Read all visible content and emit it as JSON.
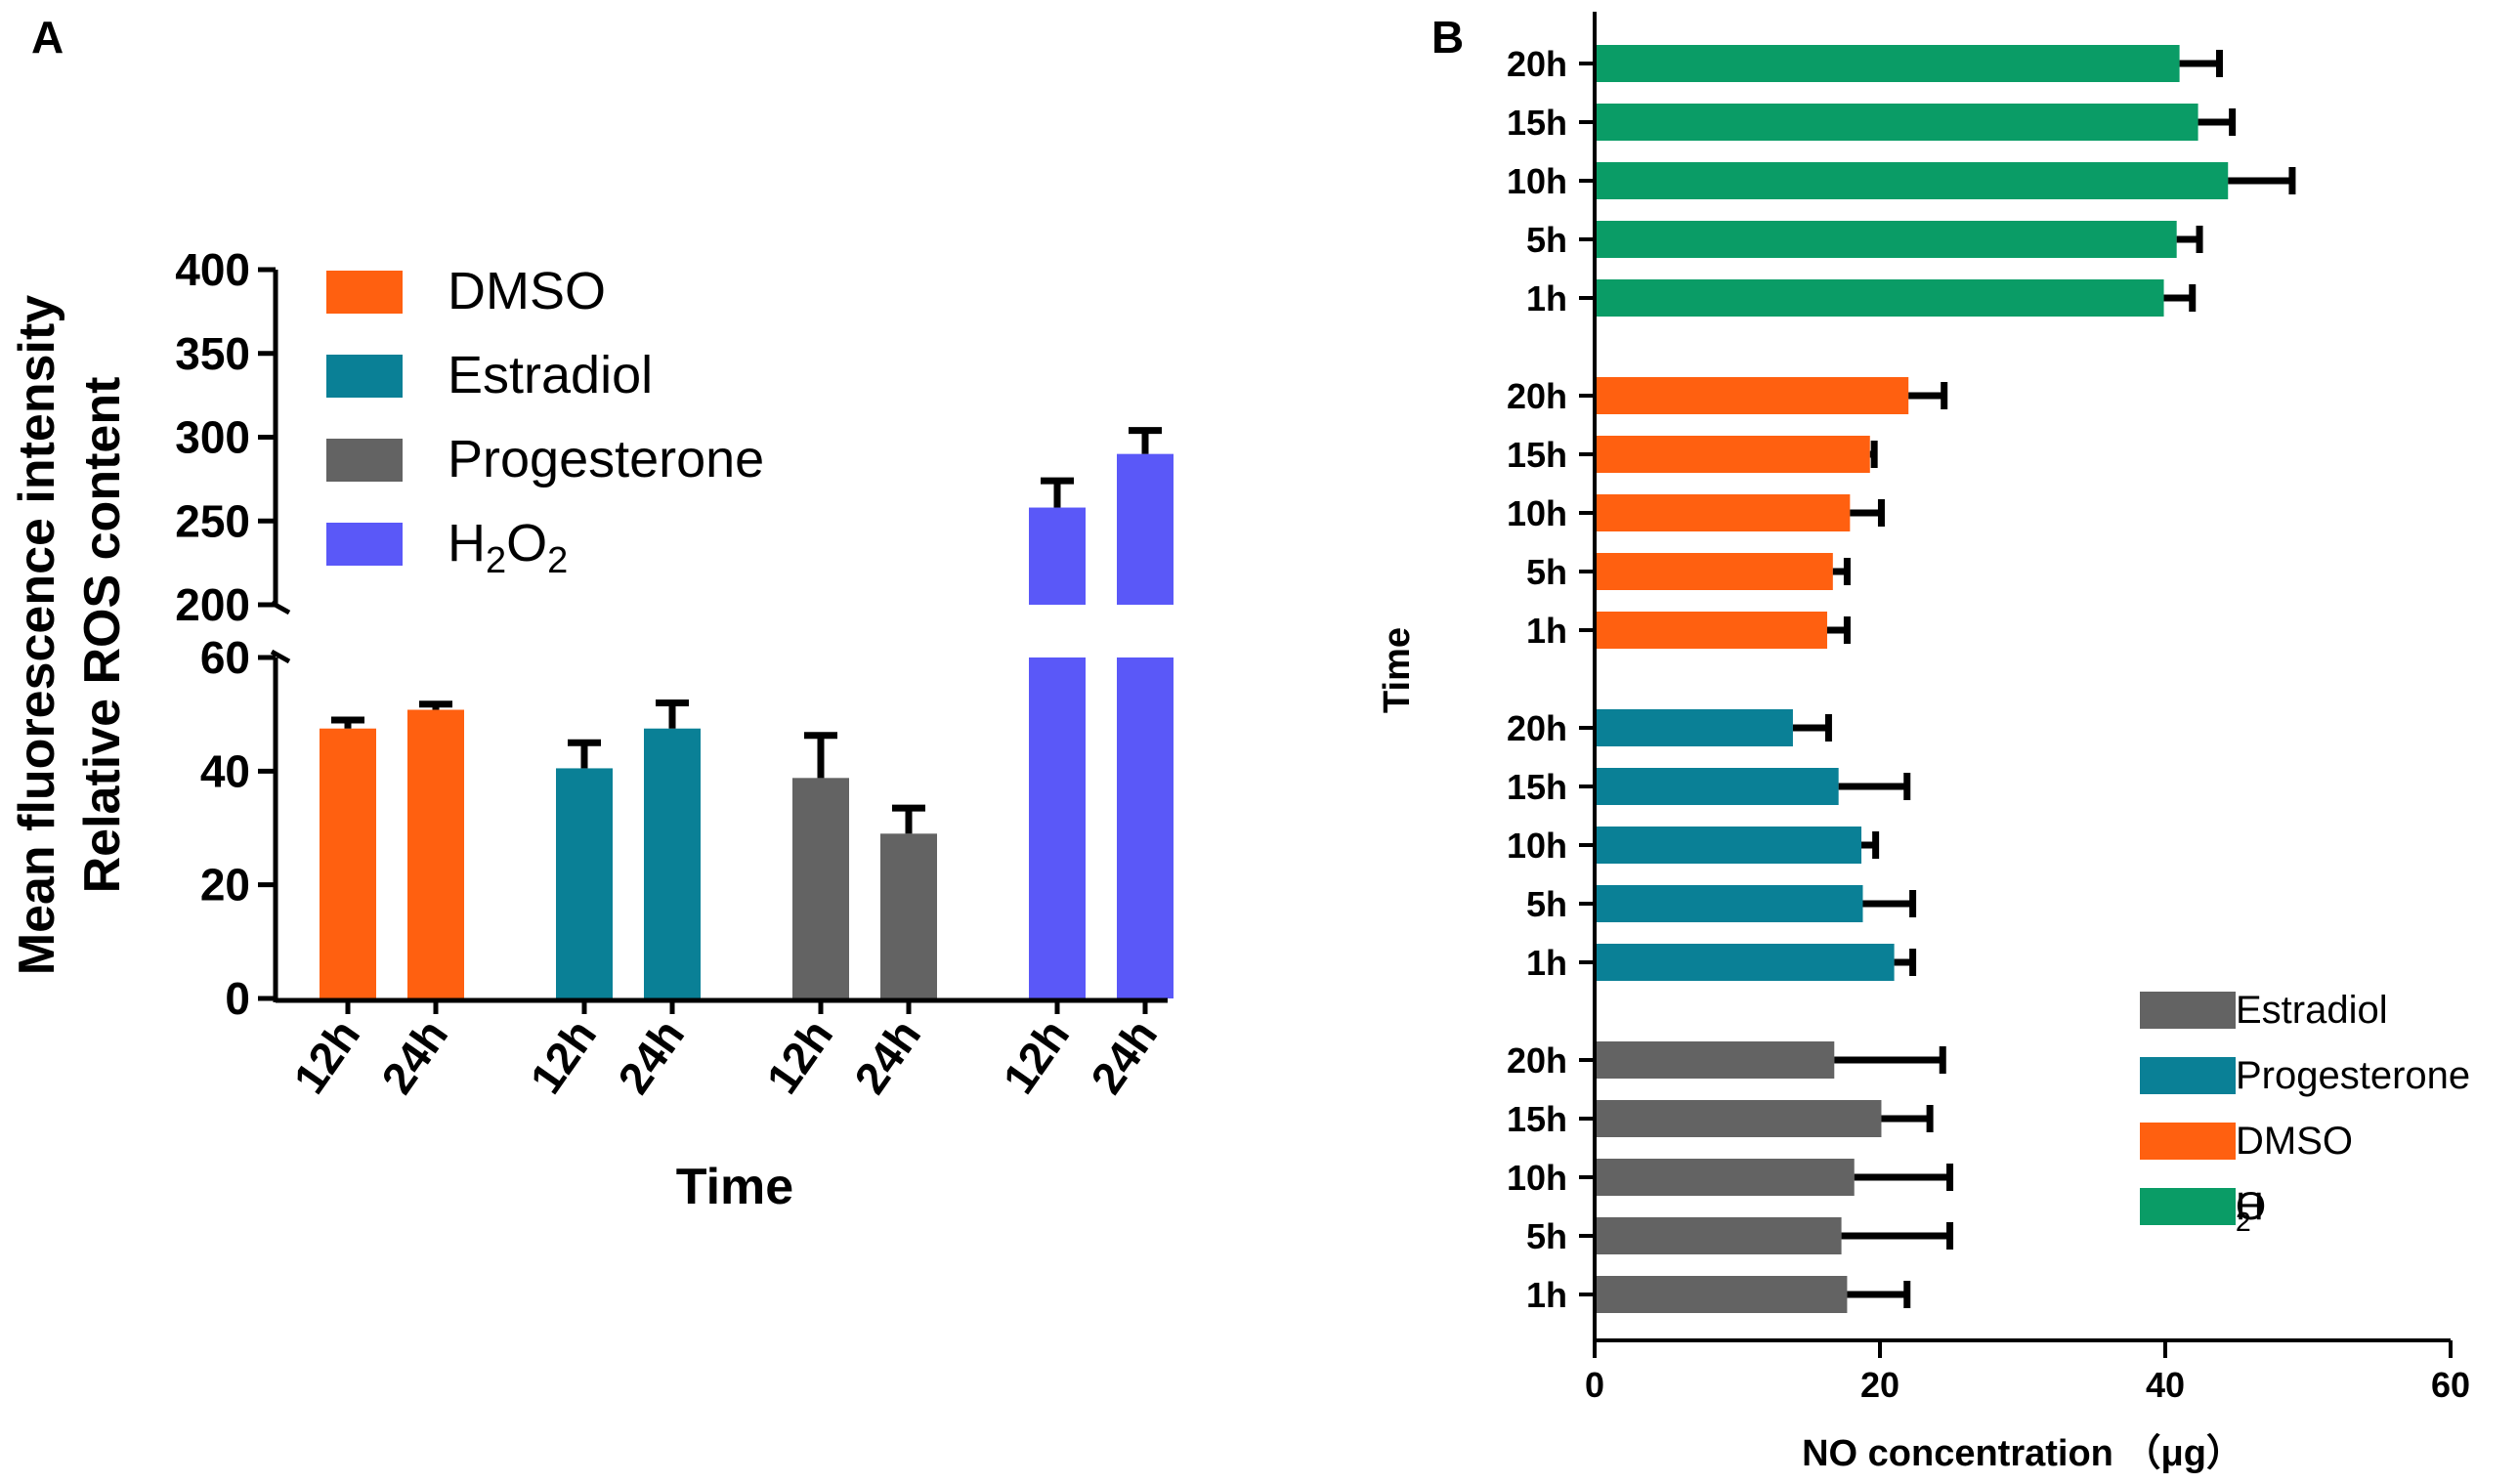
{
  "colors": {
    "DMSO": "#ff6010",
    "Estradiol": "#0a8096",
    "Progesterone": "#636363",
    "H2O2_A": "#5a58f8",
    "H2O2_B": "#0a9c66",
    "axis": "#000000"
  },
  "chart_data": [
    {
      "panel": "A",
      "type": "bar",
      "ylabel_line1": "Mean fluorescence intensity",
      "ylabel_line2": "Relative ROS content",
      "xlabel": "Time",
      "y_axis_break": true,
      "ylim_lower": [
        0,
        60
      ],
      "ylim_upper": [
        200,
        400
      ],
      "yticks_lower": [
        "0",
        "20",
        "40",
        "60"
      ],
      "yticks_upper": [
        "200",
        "250",
        "300",
        "350",
        "400"
      ],
      "groups": [
        {
          "name": "DMSO",
          "color_key": "DMSO",
          "bars": [
            {
              "label": "12h",
              "value": 47.5,
              "error": 1.5
            },
            {
              "label": "24h",
              "value": 50.8,
              "error": 1.0
            }
          ]
        },
        {
          "name": "Estradiol",
          "color_key": "Estradiol",
          "bars": [
            {
              "label": "12h",
              "value": 40.5,
              "error": 4.5
            },
            {
              "label": "24h",
              "value": 47.5,
              "error": 4.5
            }
          ]
        },
        {
          "name": "Progesterone",
          "color_key": "Progesterone",
          "bars": [
            {
              "label": "12h",
              "value": 38.8,
              "error": 7.5
            },
            {
              "label": "24h",
              "value": 29.0,
              "error": 4.5
            }
          ]
        },
        {
          "name": "H2O2",
          "color_key": "H2O2_A",
          "bars": [
            {
              "label": "12h",
              "value": 258,
              "error": 16
            },
            {
              "label": "24h",
              "value": 290,
              "error": 14
            }
          ]
        }
      ],
      "legend": [
        {
          "label": "DMSO",
          "color_key": "DMSO"
        },
        {
          "label": "Estradiol",
          "color_key": "Estradiol"
        },
        {
          "label": "Progesterone",
          "color_key": "Progesterone"
        },
        {
          "label_main": "H",
          "label_sub1": "2",
          "label_mid": "O",
          "label_sub2": "2",
          "color_key": "H2O2_A"
        }
      ]
    },
    {
      "panel": "B",
      "type": "bar",
      "orientation": "horizontal",
      "xlabel": "NO concentration （μg）",
      "ylabel": "Time",
      "xlim": [
        0,
        60
      ],
      "xticks": [
        "0",
        "20",
        "40",
        "60"
      ],
      "groups": [
        {
          "color_key": "H2O2_B",
          "bars": [
            {
              "label": "20h",
              "value": 41.0,
              "error": 2.8
            },
            {
              "label": "15h",
              "value": 42.3,
              "error": 2.4
            },
            {
              "label": "10h",
              "value": 44.4,
              "error": 4.5
            },
            {
              "label": "5h",
              "value": 40.8,
              "error": 1.6
            },
            {
              "label": "1h",
              "value": 39.9,
              "error": 2.0
            }
          ]
        },
        {
          "color_key": "DMSO",
          "bars": [
            {
              "label": "20h",
              "value": 22.0,
              "error": 2.5
            },
            {
              "label": "15h",
              "value": 19.3,
              "error": 0.3
            },
            {
              "label": "10h",
              "value": 17.9,
              "error": 2.2
            },
            {
              "label": "5h",
              "value": 16.7,
              "error": 1.0
            },
            {
              "label": "1h",
              "value": 16.3,
              "error": 1.4
            }
          ]
        },
        {
          "color_key": "Estradiol",
          "bars": [
            {
              "label": "20h",
              "value": 13.9,
              "error": 2.5
            },
            {
              "label": "15h",
              "value": 17.1,
              "error": 4.8
            },
            {
              "label": "10h",
              "value": 18.7,
              "error": 1.0
            },
            {
              "label": "5h",
              "value": 18.8,
              "error": 3.5
            },
            {
              "label": "1h",
              "value": 21.0,
              "error": 1.3
            }
          ]
        },
        {
          "color_key": "Progesterone",
          "bars": [
            {
              "label": "20h",
              "value": 16.8,
              "error": 7.6
            },
            {
              "label": "15h",
              "value": 20.1,
              "error": 3.4
            },
            {
              "label": "10h",
              "value": 18.2,
              "error": 6.7
            },
            {
              "label": "5h",
              "value": 17.3,
              "error": 7.6
            },
            {
              "label": "1h",
              "value": 17.7,
              "error": 4.2
            }
          ]
        }
      ],
      "legend": [
        {
          "label": "Estradiol",
          "color_key": "Progesterone"
        },
        {
          "label": "Progesterone",
          "color_key": "Estradiol"
        },
        {
          "label": "DMSO",
          "color_key": "DMSO"
        },
        {
          "label_main": "H",
          "label_sub1": "2",
          "label_mid": "O",
          "label_sub2": "2",
          "color_key": "H2O2_B"
        }
      ]
    }
  ]
}
